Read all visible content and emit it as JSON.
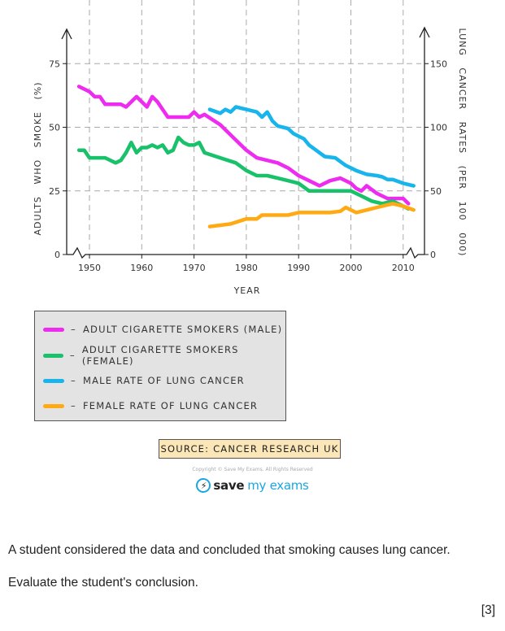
{
  "chart_data": {
    "type": "line",
    "title": "",
    "xlabel": "YEAR",
    "ylabel_left": "ADULTS WHO SMOKE (%)",
    "ylabel_right": "LUNG CANCER RATES (PER 100 000)",
    "xlim": [
      1946,
      2014
    ],
    "ylim_left": [
      0,
      80
    ],
    "ylim_right": [
      0,
      160
    ],
    "x_ticks": [
      1950,
      1960,
      1970,
      1980,
      1990,
      2000,
      2010
    ],
    "y_ticks_left": [
      0,
      25,
      50,
      75
    ],
    "y_ticks_right": [
      0,
      50,
      100,
      150
    ],
    "grid": true,
    "series": [
      {
        "name": "ADULT CIGARETTE SMOKERS (MALE)",
        "axis": "left",
        "color": "#ee2cf0",
        "x": [
          1948,
          1950,
          1951,
          1952,
          1953,
          1954,
          1955,
          1956,
          1957,
          1959,
          1961,
          1962,
          1963,
          1964,
          1965,
          1966,
          1967,
          1968,
          1969,
          1970,
          1971,
          1972,
          1975,
          1978,
          1980,
          1982,
          1984,
          1986,
          1988,
          1990,
          1992,
          1994,
          1996,
          1998,
          2000,
          2001,
          2002,
          2003,
          2005,
          2007,
          2008,
          2009,
          2010,
          2011
        ],
        "y": [
          66,
          64,
          62,
          62,
          59,
          59,
          59,
          59,
          58,
          62,
          58,
          62,
          60,
          57,
          54,
          54,
          54,
          54,
          54,
          56,
          54,
          55,
          51,
          45,
          41,
          38,
          37,
          36,
          34,
          31,
          29,
          27,
          29,
          30,
          28,
          26,
          25,
          27,
          24,
          22,
          22,
          22,
          22,
          20
        ]
      },
      {
        "name": "ADULT CIGARETTE SMOKERS (FEMALE)",
        "axis": "left",
        "color": "#19c16a",
        "x": [
          1948,
          1949,
          1950,
          1952,
          1953,
          1955,
          1956,
          1957,
          1958,
          1959,
          1960,
          1961,
          1962,
          1963,
          1964,
          1965,
          1966,
          1967,
          1968,
          1969,
          1970,
          1971,
          1972,
          1975,
          1978,
          1980,
          1982,
          1984,
          1986,
          1988,
          1990,
          1992,
          1994,
          1996,
          1998,
          2000,
          2002,
          2004,
          2006,
          2008,
          2010,
          2011
        ],
        "y": [
          41,
          41,
          38,
          38,
          38,
          36,
          37,
          40,
          44,
          40,
          42,
          42,
          43,
          42,
          43,
          40,
          41,
          46,
          44,
          43,
          43,
          44,
          40,
          38,
          36,
          33,
          31,
          31,
          30,
          29,
          28,
          25,
          25,
          25,
          25,
          25,
          23,
          21,
          20,
          21,
          19,
          18
        ]
      },
      {
        "name": "MALE RATE OF LUNG CANCER",
        "axis": "right",
        "color": "#18b4ec",
        "x": [
          1973,
          1975,
          1976,
          1977,
          1978,
          1980,
          1982,
          1983,
          1984,
          1985,
          1986,
          1988,
          1989,
          1990,
          1991,
          1992,
          1994,
          1995,
          1997,
          1999,
          2001,
          2003,
          2005,
          2006,
          2007,
          2008,
          2010,
          2012
        ],
        "y": [
          114,
          111,
          114,
          112,
          116,
          114,
          112,
          108,
          112,
          105,
          101,
          99,
          95,
          93,
          91,
          86,
          80,
          77,
          76,
          70,
          66,
          63,
          62,
          61,
          59,
          59,
          56,
          54
        ]
      },
      {
        "name": "FEMALE RATE OF LUNG CANCER",
        "axis": "right",
        "color": "#ffaa12",
        "x": [
          1973,
          1977,
          1980,
          1982,
          1983,
          1986,
          1988,
          1990,
          1993,
          1996,
          1998,
          1999,
          2001,
          2004,
          2006,
          2008,
          2010,
          2012
        ],
        "y": [
          22,
          24,
          28,
          28,
          31,
          31,
          31,
          33,
          33,
          33,
          34,
          37,
          33,
          36,
          38,
          40,
          38,
          35
        ]
      }
    ],
    "legend": {
      "placement": "bottom-left",
      "entries": [
        {
          "label": "ADULT CIGARETTE SMOKERS (MALE)",
          "color": "#ee2cf0"
        },
        {
          "label": "ADULT CIGARETTE SMOKERS (FEMALE)",
          "color": "#19c16a"
        },
        {
          "label": "MALE RATE OF LUNG CANCER",
          "color": "#18b4ec"
        },
        {
          "label": "FEMALE RATE OF LUNG CANCER",
          "color": "#ffaa12"
        }
      ]
    }
  },
  "source": "SOURCE: CANCER RESEARCH UK",
  "copyright": "Copyright © Save My Exams. All Rights Reserved",
  "brand": {
    "save": "save",
    "rest": "my exams",
    "icon": "lightning-icon"
  },
  "question": {
    "line1": "A student considered the data and concluded that smoking causes lung cancer.",
    "line2": "Evaluate the student's conclusion.",
    "marks": "[3]"
  }
}
